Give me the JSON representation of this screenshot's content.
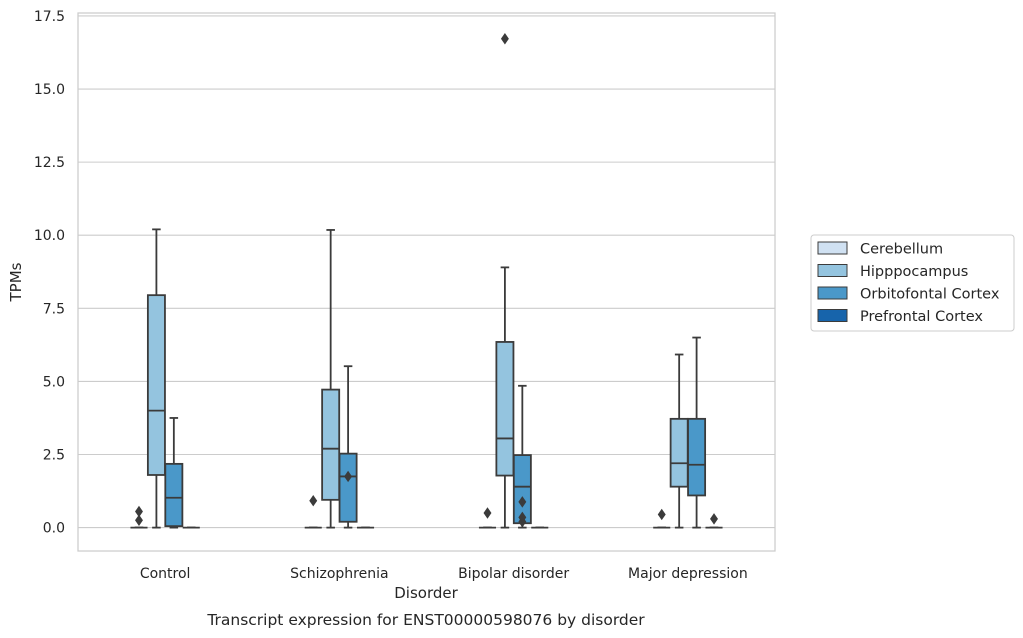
{
  "chart_data": {
    "type": "box",
    "title": "",
    "caption": "Transcript expression for ENST00000598076 by disorder",
    "xlabel": "Disorder",
    "ylabel": "TPMs",
    "ylim": [
      -0.8,
      17.6
    ],
    "yticks": [
      "0.0",
      "2.5",
      "5.0",
      "7.5",
      "10.0",
      "12.5",
      "15.0",
      "17.5"
    ],
    "ytick_values": [
      0,
      2.5,
      5,
      7.5,
      10,
      12.5,
      15,
      17.5
    ],
    "grid": "horizontal",
    "legend_position": "right",
    "categories": [
      "Control",
      "Schizophrenia",
      "Bipolar disorder",
      "Major depression"
    ],
    "series": [
      {
        "name": "Cerebellum",
        "color": "#d0e1f2",
        "boxes": [
          {
            "q1": 0,
            "median": 0,
            "q3": 0,
            "whisker_low": 0,
            "whisker_high": 0,
            "outliers": [
              0.25,
              0.55
            ]
          },
          {
            "q1": 0,
            "median": 0,
            "q3": 0,
            "whisker_low": 0,
            "whisker_high": 0,
            "outliers": [
              0.92
            ]
          },
          {
            "q1": 0,
            "median": 0,
            "q3": 0,
            "whisker_low": 0,
            "whisker_high": 0,
            "outliers": [
              0.5
            ]
          },
          {
            "q1": 0,
            "median": 0,
            "q3": 0,
            "whisker_low": 0,
            "whisker_high": 0,
            "outliers": [
              0.45
            ]
          }
        ]
      },
      {
        "name": "Hipppocampus",
        "color": "#94c4df",
        "boxes": [
          {
            "q1": 1.8,
            "median": 4.0,
            "q3": 7.95,
            "whisker_low": 0,
            "whisker_high": 10.2,
            "outliers": []
          },
          {
            "q1": 0.95,
            "median": 2.7,
            "q3": 4.72,
            "whisker_low": 0,
            "whisker_high": 10.18,
            "outliers": []
          },
          {
            "q1": 1.78,
            "median": 3.05,
            "q3": 6.35,
            "whisker_low": 0,
            "whisker_high": 8.9,
            "outliers": [
              16.72
            ]
          },
          {
            "q1": 1.4,
            "median": 2.2,
            "q3": 3.72,
            "whisker_low": 0,
            "whisker_high": 5.92,
            "outliers": []
          }
        ]
      },
      {
        "name": "Orbitofontal Cortex",
        "color": "#4a98c9",
        "boxes": [
          {
            "q1": 0.05,
            "median": 1.02,
            "q3": 2.18,
            "whisker_low": 0,
            "whisker_high": 3.75,
            "outliers": []
          },
          {
            "q1": 0.2,
            "median": 1.75,
            "q3": 2.53,
            "whisker_low": 0,
            "whisker_high": 5.52,
            "outliers": [
              1.75
            ]
          },
          {
            "q1": 0.15,
            "median": 1.4,
            "q3": 2.48,
            "whisker_low": 0,
            "whisker_high": 4.85,
            "outliers": [
              0.2,
              0.35,
              0.88
            ]
          },
          {
            "q1": 1.1,
            "median": 2.15,
            "q3": 3.72,
            "whisker_low": 0,
            "whisker_high": 6.5,
            "outliers": []
          }
        ]
      },
      {
        "name": "Prefrontal Cortex",
        "color": "#1764ab",
        "boxes": [
          {
            "q1": 0,
            "median": 0,
            "q3": 0,
            "whisker_low": 0,
            "whisker_high": 0,
            "outliers": []
          },
          {
            "q1": 0,
            "median": 0,
            "q3": 0,
            "whisker_low": 0,
            "whisker_high": 0,
            "outliers": []
          },
          {
            "q1": 0,
            "median": 0,
            "q3": 0,
            "whisker_low": 0,
            "whisker_high": 0,
            "outliers": []
          },
          {
            "q1": 0,
            "median": 0,
            "q3": 0,
            "whisker_low": 0,
            "whisker_high": 0,
            "outliers": [
              0.3
            ]
          }
        ]
      }
    ]
  }
}
